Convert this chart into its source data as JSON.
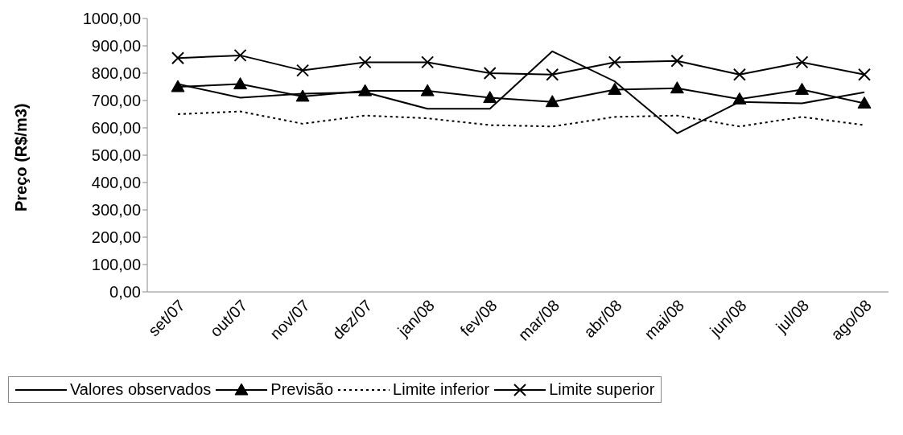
{
  "chart_data": {
    "type": "line",
    "ylabel": "Preço (R$/m3)",
    "categories": [
      "set/07",
      "out/07",
      "nov/07",
      "dez/07",
      "jan/08",
      "fev/08",
      "mar/08",
      "abr/08",
      "mai/08",
      "jun/08",
      "jul/08",
      "ago/08"
    ],
    "series": [
      {
        "name": "Valores observados",
        "color": "#000000",
        "marker": "none",
        "line_style": "solid",
        "values": [
          760,
          710,
          725,
          730,
          670,
          670,
          880,
          770,
          580,
          695,
          690,
          730
        ]
      },
      {
        "name": "Previsão",
        "color": "#000000",
        "marker": "triangle",
        "line_style": "solid",
        "values": [
          750,
          760,
          715,
          735,
          735,
          710,
          695,
          740,
          745,
          705,
          740,
          690
        ]
      },
      {
        "name": "Limite inferior",
        "color": "#000000",
        "marker": "none",
        "line_style": "dotted",
        "values": [
          650,
          660,
          615,
          645,
          635,
          610,
          605,
          640,
          645,
          605,
          640,
          610
        ]
      },
      {
        "name": "Limite superior",
        "color": "#000000",
        "marker": "cross",
        "line_style": "solid",
        "values": [
          855,
          865,
          810,
          840,
          840,
          800,
          795,
          840,
          845,
          795,
          840,
          795
        ]
      }
    ],
    "ylim": [
      0,
      1000
    ],
    "yticks": [
      {
        "value": 0,
        "label": "0,00"
      },
      {
        "value": 100,
        "label": "100,00"
      },
      {
        "value": 200,
        "label": "200,00"
      },
      {
        "value": 300,
        "label": "300,00"
      },
      {
        "value": 400,
        "label": "400,00"
      },
      {
        "value": 500,
        "label": "500,00"
      },
      {
        "value": 600,
        "label": "600,00"
      },
      {
        "value": 700,
        "label": "700,00"
      },
      {
        "value": 800,
        "label": "800,00"
      },
      {
        "value": 900,
        "label": "900,00"
      },
      {
        "value": 1000,
        "label": "1000,00"
      }
    ],
    "grid": false,
    "legend": "bottom"
  }
}
